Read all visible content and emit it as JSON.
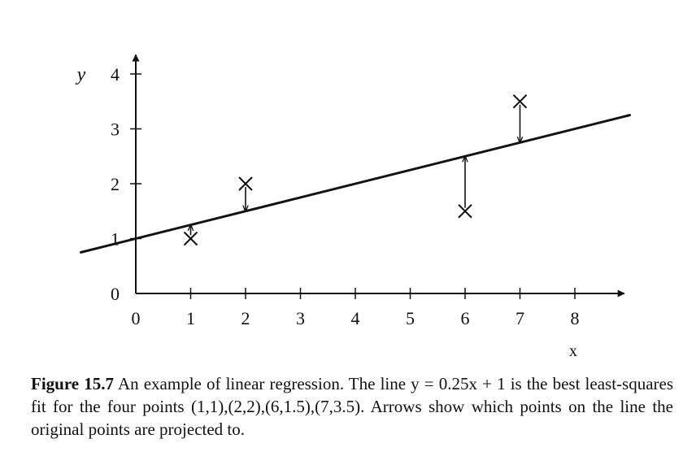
{
  "chart_data": {
    "type": "scatter",
    "title": "",
    "xlabel": "x",
    "ylabel": "y",
    "xlim": [
      0,
      8.9
    ],
    "ylim": [
      0,
      4.35
    ],
    "x_ticks": [
      {
        "value": 0,
        "label": "0"
      },
      {
        "value": 1,
        "label": "1"
      },
      {
        "value": 2,
        "label": "2"
      },
      {
        "value": 3,
        "label": "3"
      },
      {
        "value": 4,
        "label": "4"
      },
      {
        "value": 5,
        "label": "5"
      },
      {
        "value": 6,
        "label": "6"
      },
      {
        "value": 7,
        "label": "7"
      },
      {
        "value": 8,
        "label": "8"
      }
    ],
    "y_ticks": [
      {
        "value": 0,
        "label": "0"
      },
      {
        "value": 1,
        "label": "1"
      },
      {
        "value": 2,
        "label": "2"
      },
      {
        "value": 3,
        "label": "3"
      },
      {
        "value": 4,
        "label": "4"
      }
    ],
    "points": [
      {
        "x": 1,
        "y": 1
      },
      {
        "x": 2,
        "y": 2
      },
      {
        "x": 6,
        "y": 1.5
      },
      {
        "x": 7,
        "y": 3.5
      }
    ],
    "regression_line": {
      "slope": 0.25,
      "intercept": 1,
      "x_range": [
        -1,
        9
      ]
    },
    "projection_arrows": [
      {
        "x": 1,
        "from_y": 1,
        "to_y": 1.25
      },
      {
        "x": 2,
        "from_y": 2,
        "to_y": 1.5
      },
      {
        "x": 6,
        "from_y": 1.5,
        "to_y": 2.5
      },
      {
        "x": 7,
        "from_y": 3.5,
        "to_y": 2.75
      }
    ],
    "grid": false,
    "legend": "none"
  },
  "caption": {
    "label": "Figure 15.7",
    "text": " An example of linear regression.   The line y = 0.25x + 1 is the best least-squares fit for the four points (1,1),(2,2),(6,1.5),(7,3.5). Arrows show which points on the line the original points are projected to."
  }
}
